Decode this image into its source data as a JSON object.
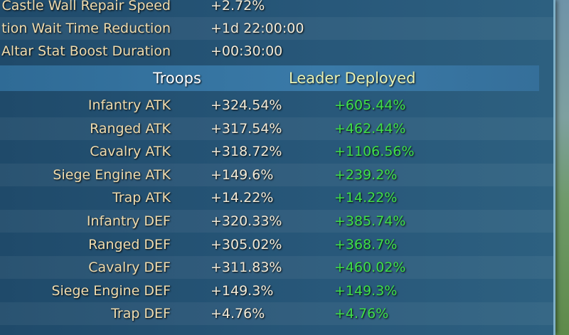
{
  "stats": [
    {
      "label": "Castle Wall Repair Speed",
      "value": "+2.72%"
    },
    {
      "label": "tion Wait Time Reduction",
      "value": "+1d 22:00:00"
    },
    {
      "label": "Altar Stat Boost Duration",
      "value": "+00:30:00"
    }
  ],
  "header": {
    "troops": "Troops",
    "leader": "Leader Deployed"
  },
  "rows": [
    {
      "label": "Infantry ATK",
      "troops": "+324.54%",
      "leader": "+605.44%"
    },
    {
      "label": "Ranged ATK",
      "troops": "+317.54%",
      "leader": "+462.44%"
    },
    {
      "label": "Cavalry ATK",
      "troops": "+318.72%",
      "leader": "+1106.56%"
    },
    {
      "label": "Siege Engine ATK",
      "troops": "+149.6%",
      "leader": "+239.2%"
    },
    {
      "label": "Trap ATK",
      "troops": "+14.22%",
      "leader": "+14.22%"
    },
    {
      "label": "Infantry DEF",
      "troops": "+320.33%",
      "leader": "+385.74%"
    },
    {
      "label": "Ranged DEF",
      "troops": "+305.02%",
      "leader": "+368.7%"
    },
    {
      "label": "Cavalry DEF",
      "troops": "+311.83%",
      "leader": "+460.02%"
    },
    {
      "label": "Siege Engine DEF",
      "troops": "+149.3%",
      "leader": "+149.3%"
    },
    {
      "label": "Trap DEF",
      "troops": "+4.76%",
      "leader": "+4.76%"
    }
  ]
}
